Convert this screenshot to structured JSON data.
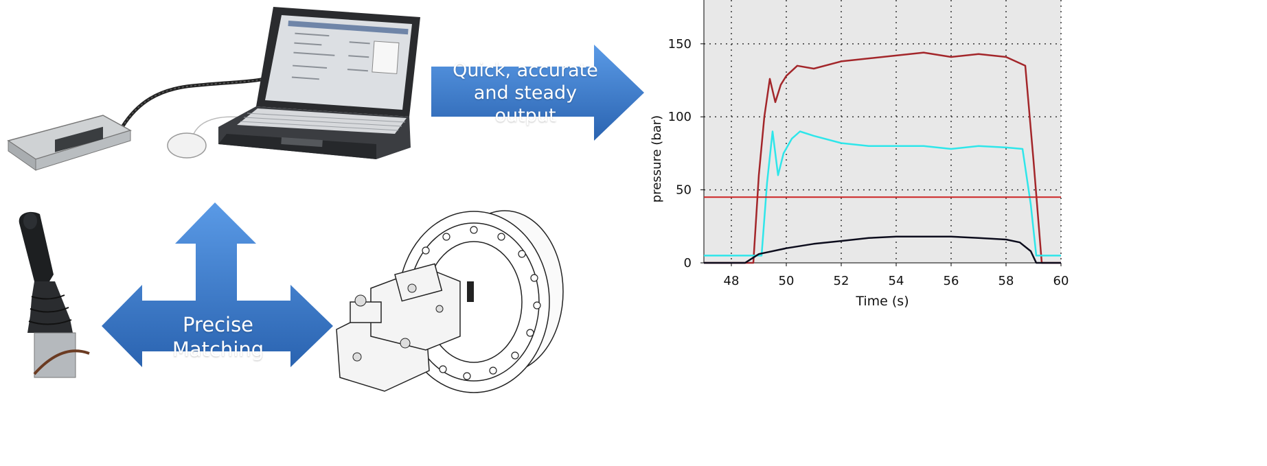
{
  "arrows": {
    "output_label": "Quick, accurate and steady output",
    "matching_label": "Precise Matching"
  },
  "colors": {
    "arrow_blue": "#3b7fd2",
    "arrow_blue_dark": "#2a63b0",
    "plot_bg": "#e8e8e8",
    "series_red": "#a3262a",
    "series_cyan": "#2ee6ea",
    "series_black": "#0c0c1c",
    "reference_red": "#cc2222"
  },
  "images": {
    "laptop": "laptop-with-ecu-icon",
    "joystick": "joystick-icon",
    "motor": "hydraulic-motor-gearbox-icon"
  },
  "chart_data": {
    "type": "line",
    "title": "",
    "xlabel": "Time (s)",
    "ylabel": "pressure (bar)",
    "xlim": [
      47,
      60
    ],
    "ylim": [
      0,
      180
    ],
    "xticks": [
      48,
      50,
      52,
      54,
      56,
      58,
      60
    ],
    "yticks": [
      0,
      50,
      100,
      150
    ],
    "grid": true,
    "series": [
      {
        "color": "#a3262a",
        "x": [
          47,
          48.8,
          49.0,
          49.2,
          49.4,
          49.6,
          49.8,
          50.0,
          50.4,
          51.0,
          52.0,
          53.0,
          54.0,
          55.0,
          56.0,
          57.0,
          58.0,
          58.7,
          59.0,
          59.3,
          60
        ],
        "y": [
          0,
          0,
          60,
          100,
          126,
          110,
          122,
          128,
          135,
          133,
          138,
          140,
          142,
          144,
          141,
          143,
          141,
          135,
          70,
          0,
          0
        ]
      },
      {
        "color": "#2ee6ea",
        "x": [
          47,
          49.1,
          49.3,
          49.5,
          49.7,
          49.9,
          50.2,
          50.5,
          51.0,
          52.0,
          53.0,
          54.0,
          55.0,
          56.0,
          57.0,
          58.0,
          58.6,
          58.9,
          59.1,
          60
        ],
        "y": [
          5,
          5,
          55,
          90,
          60,
          75,
          85,
          90,
          87,
          82,
          80,
          80,
          80,
          78,
          80,
          79,
          78,
          40,
          5,
          5
        ]
      },
      {
        "color": "#0c0c1c",
        "x": [
          47,
          48.5,
          49.0,
          50.0,
          51.0,
          52.0,
          53.0,
          54.0,
          55.0,
          56.0,
          57.0,
          58.0,
          58.5,
          58.9,
          59.1,
          60
        ],
        "y": [
          0,
          0,
          6,
          10,
          13,
          15,
          17,
          18,
          18,
          18,
          17,
          16,
          14,
          8,
          0,
          0
        ]
      },
      {
        "color": "#cc2222",
        "x": [
          47,
          60
        ],
        "y": [
          45,
          45
        ]
      }
    ]
  }
}
